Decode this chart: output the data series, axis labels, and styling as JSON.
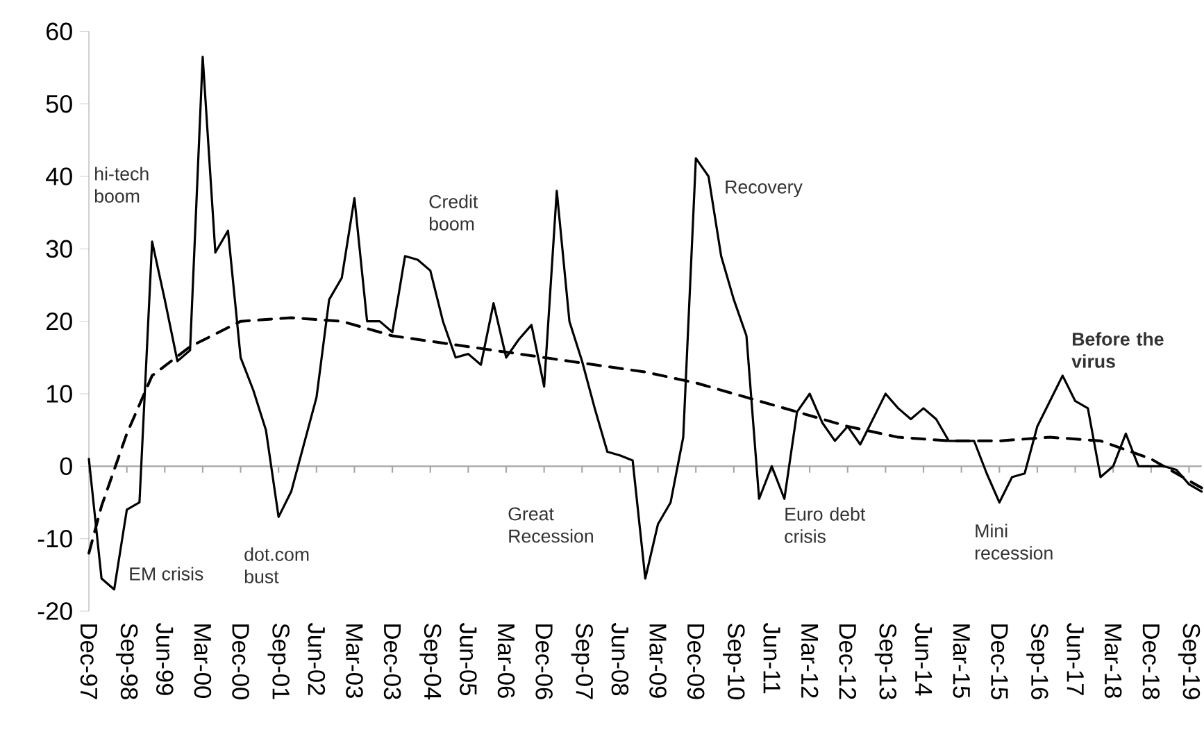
{
  "chart_data": {
    "type": "line",
    "x": [
      "1997-12",
      "1998-03",
      "1998-06",
      "1998-09",
      "1998-12",
      "1999-03",
      "1999-06",
      "1999-09",
      "1999-12",
      "2000-03",
      "2000-06",
      "2000-09",
      "2000-12",
      "2001-03",
      "2001-06",
      "2001-09",
      "2001-12",
      "2002-03",
      "2002-06",
      "2002-09",
      "2002-12",
      "2003-03",
      "2003-06",
      "2003-09",
      "2003-12",
      "2004-03",
      "2004-06",
      "2004-09",
      "2004-12",
      "2005-03",
      "2005-06",
      "2005-09",
      "2005-12",
      "2006-03",
      "2006-06",
      "2006-09",
      "2006-12",
      "2007-03",
      "2007-06",
      "2007-09",
      "2007-12",
      "2008-03",
      "2008-06",
      "2008-09",
      "2008-12",
      "2009-03",
      "2009-06",
      "2009-09",
      "2009-12",
      "2010-03",
      "2010-06",
      "2010-09",
      "2010-12",
      "2011-03",
      "2011-06",
      "2011-09",
      "2011-12",
      "2012-03",
      "2012-06",
      "2012-09",
      "2012-12",
      "2013-03",
      "2013-06",
      "2013-09",
      "2013-12",
      "2014-03",
      "2014-06",
      "2014-09",
      "2014-12",
      "2015-03",
      "2015-06",
      "2015-09",
      "2015-12",
      "2016-03",
      "2016-06",
      "2016-09",
      "2016-12",
      "2017-03",
      "2017-06",
      "2017-09",
      "2017-12",
      "2018-03",
      "2018-06",
      "2018-09",
      "2018-12",
      "2019-03",
      "2019-06",
      "2019-09",
      "2019-12"
    ],
    "series": [
      {
        "color": "#000000",
        "line_style": "solid",
        "values": [
          1,
          -15.5,
          -17,
          -6,
          -5,
          31,
          23,
          14.5,
          16,
          56.5,
          29.5,
          32.5,
          15,
          10.5,
          5,
          -7,
          -3.5,
          3,
          9.5,
          23,
          26,
          37,
          20,
          20,
          18.5,
          29,
          28.5,
          27,
          20,
          15,
          15.5,
          14,
          22.5,
          15,
          17.5,
          19.5,
          11,
          38,
          20,
          14.5,
          8,
          2,
          1.5,
          0.8,
          -15.5,
          -8,
          -5,
          4,
          42.5,
          40,
          29,
          23,
          18,
          -4.5,
          0,
          -4.5,
          7.5,
          10,
          6,
          3.5,
          5.5,
          3,
          6.5,
          10,
          8,
          6.5,
          8,
          6.5,
          3.5,
          3.5,
          3.5,
          -1,
          -5,
          -1.5,
          -1,
          5.5,
          9,
          12.5,
          9,
          8,
          -1.5,
          0,
          4.5,
          0,
          0,
          0,
          -0.5,
          -2.5,
          -3.5
        ]
      },
      {
        "type": "line",
        "color": "#000000",
        "line_style": "dashed",
        "x": [
          "1997-12",
          "1998-03",
          "1998-09",
          "1999-03",
          "1999-12",
          "2000-12",
          "2001-12",
          "2002-12",
          "2003-12",
          "2004-12",
          "2005-12",
          "2006-12",
          "2007-12",
          "2008-12",
          "2009-12",
          "2010-12",
          "2011-12",
          "2012-12",
          "2013-12",
          "2014-12",
          "2015-12",
          "2016-12",
          "2017-12",
          "2018-12",
          "2019-12"
        ],
        "values": [
          -12,
          -5.5,
          4.5,
          12.5,
          16.5,
          20,
          20.5,
          20,
          18,
          17,
          16,
          15,
          14,
          13,
          11.5,
          9.5,
          7.5,
          5.5,
          4,
          3.5,
          3.5,
          4,
          3.5,
          1,
          -3
        ]
      }
    ],
    "xlim": [
      "1997-12",
      "2019-12"
    ],
    "xticks": [
      {
        "value": "1997-12",
        "label": "Dec-97"
      },
      {
        "value": "1998-09",
        "label": "Sep-98"
      },
      {
        "value": "1999-06",
        "label": "Jun-99"
      },
      {
        "value": "2000-03",
        "label": "Mar-00"
      },
      {
        "value": "2000-12",
        "label": "Dec-00"
      },
      {
        "value": "2001-09",
        "label": "Sep-01"
      },
      {
        "value": "2002-06",
        "label": "Jun-02"
      },
      {
        "value": "2003-03",
        "label": "Mar-03"
      },
      {
        "value": "2003-12",
        "label": "Dec-03"
      },
      {
        "value": "2004-09",
        "label": "Sep-04"
      },
      {
        "value": "2005-06",
        "label": "Jun-05"
      },
      {
        "value": "2006-03",
        "label": "Mar-06"
      },
      {
        "value": "2006-12",
        "label": "Dec-06"
      },
      {
        "value": "2007-09",
        "label": "Sep-07"
      },
      {
        "value": "2008-06",
        "label": "Jun-08"
      },
      {
        "value": "2009-03",
        "label": "Mar-09"
      },
      {
        "value": "2009-12",
        "label": "Dec-09"
      },
      {
        "value": "2010-09",
        "label": "Sep-10"
      },
      {
        "value": "2011-06",
        "label": "Jun-11"
      },
      {
        "value": "2012-03",
        "label": "Mar-12"
      },
      {
        "value": "2012-12",
        "label": "Dec-12"
      },
      {
        "value": "2013-09",
        "label": "Sep-13"
      },
      {
        "value": "2014-06",
        "label": "Jun-14"
      },
      {
        "value": "2015-03",
        "label": "Mar-15"
      },
      {
        "value": "2015-12",
        "label": "Dec-15"
      },
      {
        "value": "2016-09",
        "label": "Sep-16"
      },
      {
        "value": "2017-06",
        "label": "Jun-17"
      },
      {
        "value": "2018-03",
        "label": "Mar-18"
      },
      {
        "value": "2018-12",
        "label": "Dec-18"
      },
      {
        "value": "2019-09",
        "label": "Sep-19"
      }
    ],
    "ylim": [
      -20,
      60
    ],
    "yticks": [
      -20,
      -10,
      0,
      10,
      20,
      30,
      40,
      50,
      60
    ],
    "legend": false,
    "marker": "none",
    "annotations": [
      "hi-tech boom",
      "EM crisis",
      "dot.com bust",
      "Credit boom",
      "Great Recession",
      "Recovery",
      "Euro debt crisis",
      "Mini recession",
      "Before the virus"
    ]
  }
}
